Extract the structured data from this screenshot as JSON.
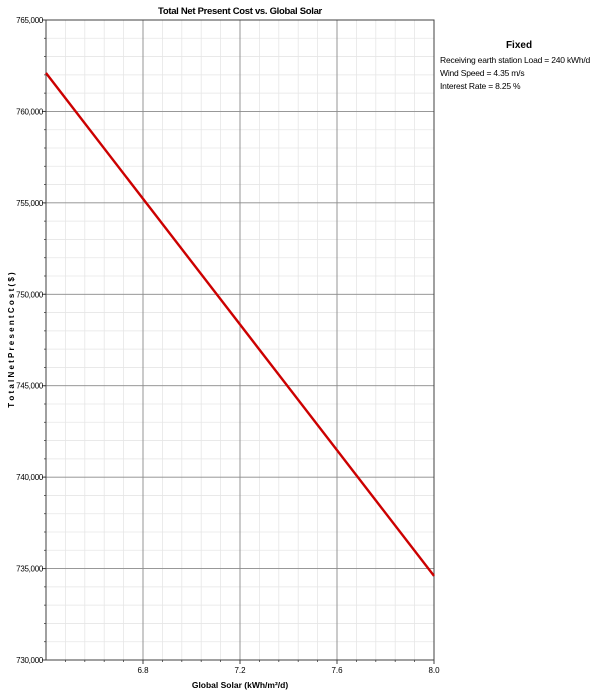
{
  "chart_data": {
    "type": "line",
    "title": "Total Net Present Cost vs. Global Solar",
    "xlabel": "Global Solar (kWh/m²/d)",
    "ylabel": "T o t a l  N e t  P r e s e n t  C o s t  ( $ )",
    "xlim": [
      6.4,
      8.0
    ],
    "ylim": [
      730000,
      765000
    ],
    "x_ticks": [
      6.8,
      7.2,
      7.6,
      8.0
    ],
    "x_tick_labels": [
      "6.8",
      "7.2",
      "7.6",
      "8.0"
    ],
    "y_ticks": [
      730000,
      735000,
      740000,
      745000,
      750000,
      755000,
      760000,
      765000
    ],
    "y_tick_labels": [
      "730,000",
      "735,000",
      "740,000",
      "745,000",
      "750,000",
      "755,000",
      "760,000",
      "765,000"
    ],
    "grid": true,
    "series": [
      {
        "color": "#cc0000",
        "x": [
          6.4,
          8.0
        ],
        "y": [
          762100,
          734600
        ]
      }
    ]
  },
  "fixed": {
    "title": "Fixed",
    "lines": [
      "Receiving earth station Load  = 240 kWh/d",
      "Wind Speed = 4.35 m/s",
      "Interest Rate = 8.25 %"
    ]
  }
}
